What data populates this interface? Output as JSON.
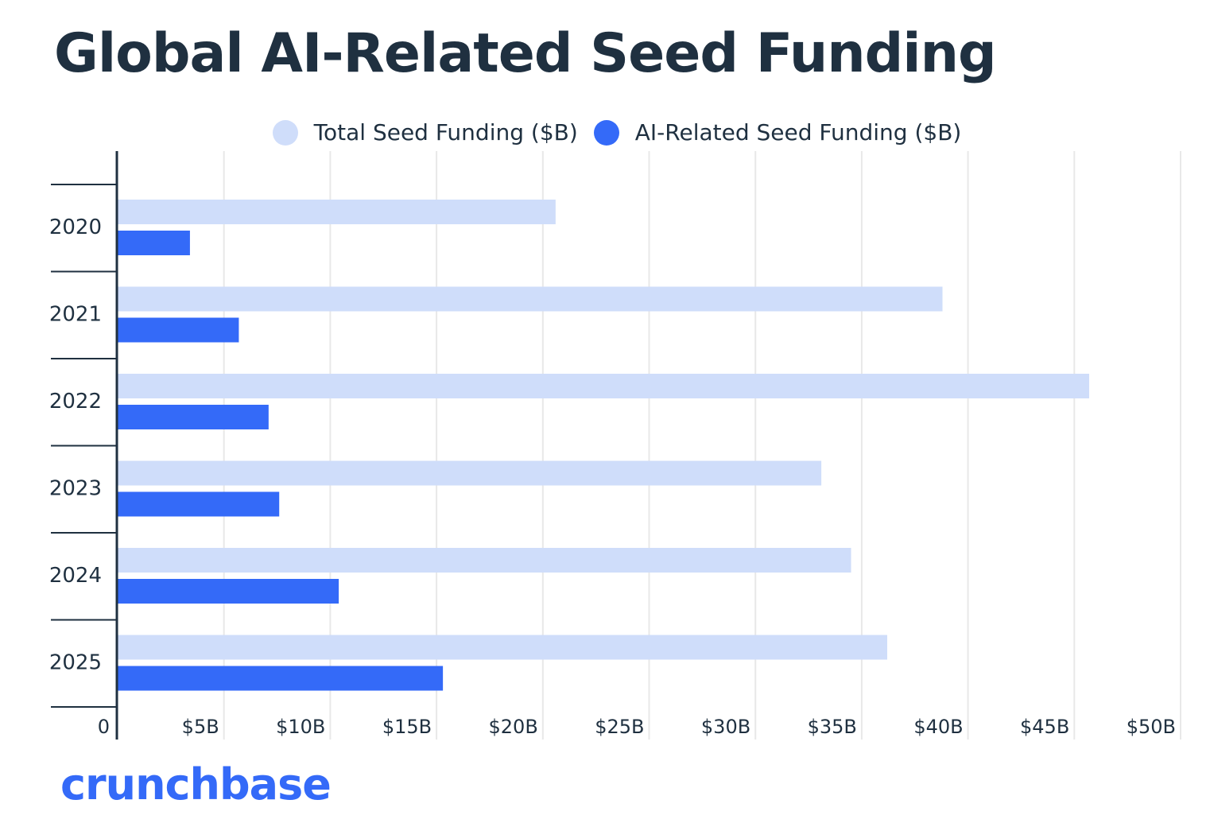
{
  "chart_data": {
    "type": "bar",
    "orientation": "horizontal",
    "title": "Global AI-Related Seed Funding",
    "categories": [
      "2020",
      "2021",
      "2022",
      "2023",
      "2024",
      "2025"
    ],
    "series": [
      {
        "name": "Total Seed Funding ($B)",
        "color": "#cfddfa",
        "values": [
          20.6,
          38.8,
          45.7,
          33.1,
          34.5,
          36.2
        ]
      },
      {
        "name": "AI-Related Seed Funding ($B)",
        "color": "#346af8",
        "values": [
          3.4,
          5.7,
          7.1,
          7.6,
          10.4,
          15.3
        ]
      }
    ],
    "xlim": [
      0,
      50
    ],
    "xticks": [
      0,
      5,
      10,
      15,
      20,
      25,
      30,
      35,
      40,
      45,
      50
    ],
    "xtick_labels": [
      "0",
      "$5B",
      "$10B",
      "$15B",
      "$20B",
      "$25B",
      "$30B",
      "$35B",
      "$40B",
      "$45B",
      "$50B"
    ],
    "grid": true,
    "legend_position": "top"
  },
  "brand": {
    "logo_text": "crunchbase",
    "color": "#346af8"
  }
}
